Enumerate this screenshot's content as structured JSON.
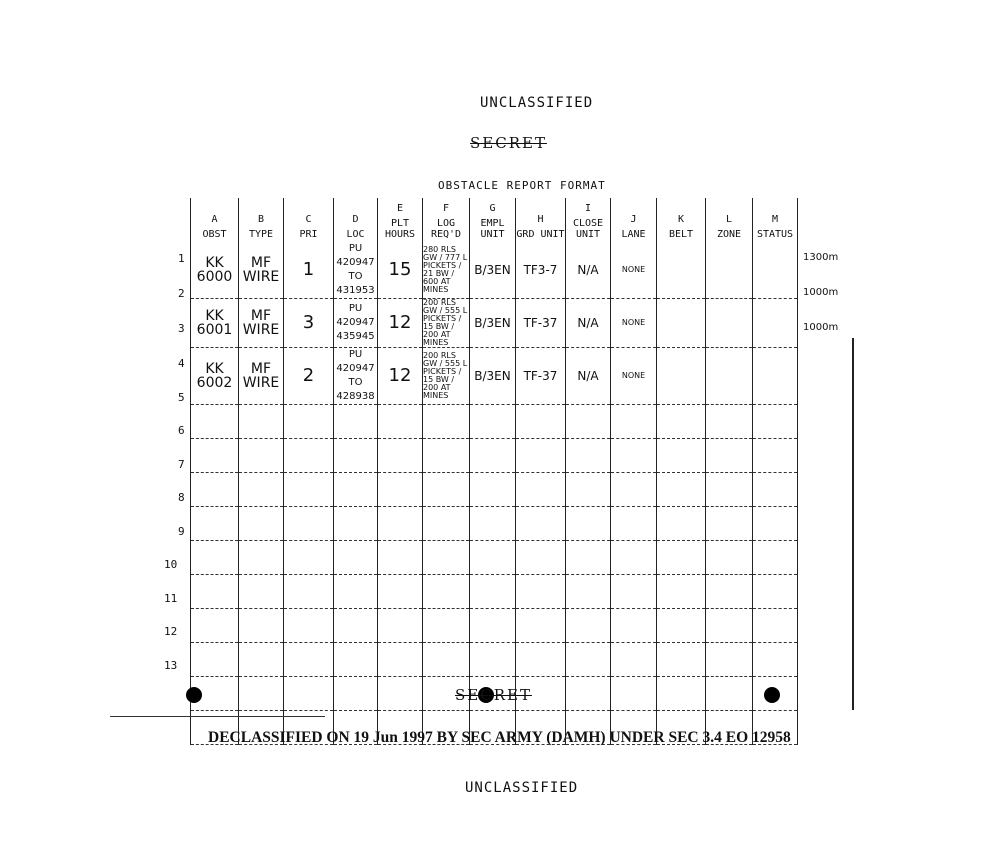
{
  "header": {
    "marking_top": "UNCLASSIFIED",
    "classification": "SECRET",
    "form_title": "OBSTACLE REPORT FORMAT"
  },
  "columns": [
    {
      "letter": "A",
      "label": "OBST"
    },
    {
      "letter": "B",
      "label": "TYPE"
    },
    {
      "letter": "C",
      "label": "PRI"
    },
    {
      "letter": "D",
      "label": "LOC"
    },
    {
      "letter": "E",
      "label": "PLT HOURS"
    },
    {
      "letter": "F",
      "label": "LOG REQ'D"
    },
    {
      "letter": "G",
      "label": "EMPL UNIT"
    },
    {
      "letter": "H",
      "label": "GRD UNIT"
    },
    {
      "letter": "I",
      "label": "CLOSE UNIT"
    },
    {
      "letter": "J",
      "label": "LANE"
    },
    {
      "letter": "K",
      "label": "BELT"
    },
    {
      "letter": "L",
      "label": "ZONE"
    },
    {
      "letter": "M",
      "label": "STATUS"
    }
  ],
  "rows": [
    {
      "num": "1",
      "cells": [
        "KK 6000",
        "MF WIRE",
        "1",
        "PU 420947 TO 431953",
        "15",
        "280 RLS GW / 777 L PICKETS / 21 BW / 600 AT MINES",
        "B/3EN",
        "TF3-7",
        "N/A",
        "NONE",
        "",
        "",
        ""
      ],
      "note": "1300m"
    },
    {
      "num": "2",
      "cells": [
        "KK 6001",
        "MF WIRE",
        "3",
        "PU 420947 435945",
        "12",
        "200 RLS GW / 555 L PICKETS / 15 BW / 200 AT MINES",
        "B/3EN",
        "TF-37",
        "N/A",
        "NONE",
        "",
        "",
        ""
      ],
      "note": "1000m"
    },
    {
      "num": "3",
      "cells": [
        "KK 6002",
        "MF WIRE",
        "2",
        "PU 420947 TO 428938",
        "12",
        "200 RLS GW / 555 L PICKETS / 15 BW / 200 AT MINES",
        "B/3EN",
        "TF-37",
        "N/A",
        "NONE",
        "",
        "",
        ""
      ],
      "note": "1000m"
    },
    {
      "num": "4",
      "cells": []
    },
    {
      "num": "5",
      "cells": []
    },
    {
      "num": "6",
      "cells": []
    },
    {
      "num": "7",
      "cells": []
    },
    {
      "num": "8",
      "cells": []
    },
    {
      "num": "9",
      "cells": []
    },
    {
      "num": "10",
      "cells": []
    },
    {
      "num": "11",
      "cells": []
    },
    {
      "num": "12",
      "cells": []
    },
    {
      "num": "13",
      "cells": []
    }
  ],
  "footer": {
    "classification": "SECRET",
    "declassified": "DECLASSIFIED ON 19 Jun 1997 BY SEC ARMY (DAMH) UNDER SEC 3.4 EO 12958",
    "marking_bottom": "UNCLASSIFIED"
  }
}
